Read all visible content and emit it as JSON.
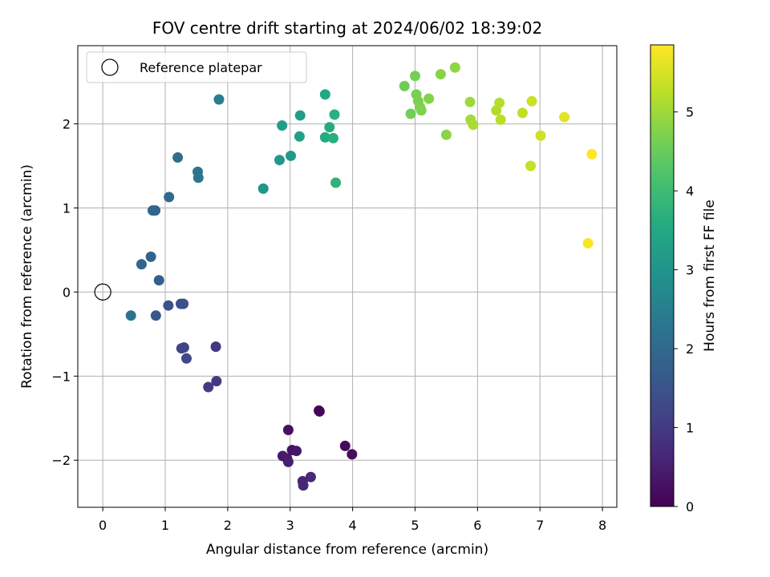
{
  "chart_data": {
    "type": "scatter",
    "title": "FOV centre drift starting at 2024/06/02 18:39:02",
    "xlabel": "Angular distance from reference (arcmin)",
    "ylabel": "Rotation from reference (arcmin)",
    "xlim": [
      -0.4,
      8.23
    ],
    "ylim": [
      -2.56,
      2.93
    ],
    "xticks": [
      0,
      1,
      2,
      3,
      4,
      5,
      6,
      7,
      8
    ],
    "yticks": [
      -2,
      -1,
      0,
      1,
      2
    ],
    "grid": true,
    "legend": {
      "label": "Reference platepar",
      "location": "top-left"
    },
    "reference_point": {
      "x": 0,
      "y": 0
    },
    "colorbar": {
      "label": "Hours from first FF file",
      "colormap": "viridis",
      "range": [
        0,
        5.85
      ],
      "ticks": [
        0,
        1,
        2,
        3,
        4,
        5
      ]
    },
    "points": [
      {
        "x": 3.46,
        "y": -1.41,
        "c": 0.05
      },
      {
        "x": 3.47,
        "y": -1.42,
        "c": 0.08
      },
      {
        "x": 3.88,
        "y": -1.83,
        "c": 0.15
      },
      {
        "x": 3.99,
        "y": -1.93,
        "c": 0.2
      },
      {
        "x": 2.97,
        "y": -1.64,
        "c": 0.25
      },
      {
        "x": 3.03,
        "y": -1.88,
        "c": 0.3
      },
      {
        "x": 3.1,
        "y": -1.89,
        "c": 0.35
      },
      {
        "x": 2.88,
        "y": -1.95,
        "c": 0.4
      },
      {
        "x": 2.95,
        "y": -1.98,
        "c": 0.45
      },
      {
        "x": 2.97,
        "y": -2.02,
        "c": 0.5
      },
      {
        "x": 3.2,
        "y": -2.25,
        "c": 0.6
      },
      {
        "x": 3.21,
        "y": -2.3,
        "c": 0.65
      },
      {
        "x": 3.33,
        "y": -2.2,
        "c": 0.7
      },
      {
        "x": 1.81,
        "y": -0.65,
        "c": 0.95
      },
      {
        "x": 1.82,
        "y": -1.06,
        "c": 1.0
      },
      {
        "x": 1.69,
        "y": -1.13,
        "c": 1.05
      },
      {
        "x": 1.3,
        "y": -0.66,
        "c": 1.15
      },
      {
        "x": 1.26,
        "y": -0.67,
        "c": 1.2
      },
      {
        "x": 1.34,
        "y": -0.79,
        "c": 1.25
      },
      {
        "x": 1.25,
        "y": -0.14,
        "c": 1.4
      },
      {
        "x": 1.29,
        "y": -0.14,
        "c": 1.45
      },
      {
        "x": 1.05,
        "y": -0.16,
        "c": 1.5
      },
      {
        "x": 0.85,
        "y": -0.28,
        "c": 1.6
      },
      {
        "x": 0.9,
        "y": 0.14,
        "c": 1.75
      },
      {
        "x": 0.77,
        "y": 0.42,
        "c": 1.85
      },
      {
        "x": 0.62,
        "y": 0.33,
        "c": 1.95
      },
      {
        "x": 0.45,
        "y": -0.28,
        "c": 2.25
      },
      {
        "x": 0.84,
        "y": 0.97,
        "c": 1.9
      },
      {
        "x": 0.8,
        "y": 0.97,
        "c": 1.95
      },
      {
        "x": 1.06,
        "y": 1.13,
        "c": 2.0
      },
      {
        "x": 1.2,
        "y": 1.6,
        "c": 2.1
      },
      {
        "x": 1.52,
        "y": 1.43,
        "c": 2.2
      },
      {
        "x": 1.53,
        "y": 1.36,
        "c": 2.3
      },
      {
        "x": 1.86,
        "y": 2.29,
        "c": 2.45
      },
      {
        "x": 2.57,
        "y": 1.23,
        "c": 3.05
      },
      {
        "x": 2.83,
        "y": 1.57,
        "c": 3.1
      },
      {
        "x": 3.01,
        "y": 1.62,
        "c": 3.15
      },
      {
        "x": 2.87,
        "y": 1.98,
        "c": 3.2
      },
      {
        "x": 3.16,
        "y": 2.1,
        "c": 3.25
      },
      {
        "x": 3.15,
        "y": 1.85,
        "c": 3.3
      },
      {
        "x": 3.56,
        "y": 2.35,
        "c": 3.5
      },
      {
        "x": 3.56,
        "y": 1.84,
        "c": 3.55
      },
      {
        "x": 3.63,
        "y": 1.96,
        "c": 3.6
      },
      {
        "x": 3.69,
        "y": 1.83,
        "c": 3.65
      },
      {
        "x": 3.71,
        "y": 2.11,
        "c": 3.7
      },
      {
        "x": 3.73,
        "y": 1.3,
        "c": 3.75
      },
      {
        "x": 4.83,
        "y": 2.45,
        "c": 4.55
      },
      {
        "x": 4.93,
        "y": 2.12,
        "c": 4.6
      },
      {
        "x": 5.0,
        "y": 2.57,
        "c": 4.62
      },
      {
        "x": 5.02,
        "y": 2.35,
        "c": 4.65
      },
      {
        "x": 5.05,
        "y": 2.27,
        "c": 4.68
      },
      {
        "x": 5.08,
        "y": 2.2,
        "c": 4.7
      },
      {
        "x": 5.1,
        "y": 2.16,
        "c": 4.72
      },
      {
        "x": 5.22,
        "y": 2.3,
        "c": 4.75
      },
      {
        "x": 5.41,
        "y": 2.59,
        "c": 4.8
      },
      {
        "x": 5.5,
        "y": 1.87,
        "c": 4.82
      },
      {
        "x": 5.64,
        "y": 2.67,
        "c": 4.85
      },
      {
        "x": 5.88,
        "y": 2.26,
        "c": 5.0
      },
      {
        "x": 5.89,
        "y": 2.05,
        "c": 5.05
      },
      {
        "x": 5.93,
        "y": 1.99,
        "c": 5.1
      },
      {
        "x": 6.3,
        "y": 2.16,
        "c": 5.15
      },
      {
        "x": 6.35,
        "y": 2.25,
        "c": 5.2
      },
      {
        "x": 6.37,
        "y": 2.05,
        "c": 5.25
      },
      {
        "x": 6.72,
        "y": 2.13,
        "c": 5.3
      },
      {
        "x": 6.85,
        "y": 1.5,
        "c": 5.35
      },
      {
        "x": 6.87,
        "y": 2.27,
        "c": 5.38
      },
      {
        "x": 7.01,
        "y": 1.86,
        "c": 5.42
      },
      {
        "x": 7.39,
        "y": 2.08,
        "c": 5.6
      },
      {
        "x": 7.77,
        "y": 0.58,
        "c": 5.8
      },
      {
        "x": 7.83,
        "y": 1.64,
        "c": 5.85
      }
    ]
  }
}
